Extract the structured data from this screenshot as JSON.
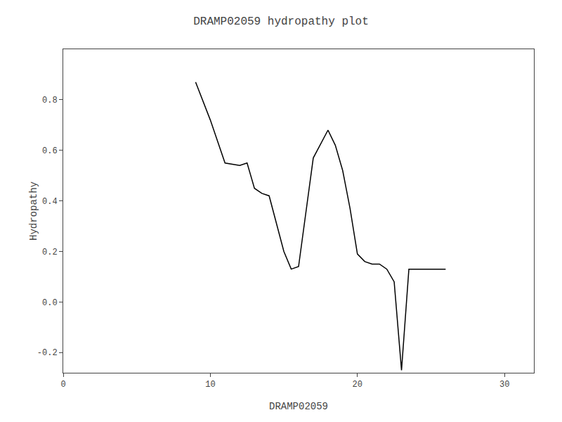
{
  "chart_data": {
    "type": "line",
    "title": "DRAMP02059 hydropathy plot",
    "xlabel": "DRAMP02059",
    "ylabel": "Hydropathy",
    "xlim": [
      0,
      32
    ],
    "ylim": [
      -0.28,
      1.0
    ],
    "xticks": [
      0,
      10,
      20,
      30
    ],
    "yticks": [
      -0.2,
      {
        "value": 0.0,
        "label": "0.0"
      },
      0.2,
      0.4,
      0.6,
      0.8
    ],
    "color": "#000000",
    "grid": false,
    "x": [
      9,
      10,
      11,
      12,
      12.5,
      13,
      13.5,
      14,
      15,
      15.5,
      16,
      17,
      18,
      18.5,
      19,
      19.5,
      20,
      20.5,
      21,
      21.5,
      22,
      22.5,
      23,
      23.5,
      24,
      25,
      26
    ],
    "values": [
      0.87,
      0.72,
      0.55,
      0.54,
      0.55,
      0.45,
      0.43,
      0.42,
      0.2,
      0.13,
      0.14,
      0.57,
      0.68,
      0.62,
      0.52,
      0.37,
      0.19,
      0.16,
      0.15,
      0.15,
      0.13,
      0.08,
      -0.27,
      0.13,
      0.13,
      0.13,
      0.13
    ]
  }
}
